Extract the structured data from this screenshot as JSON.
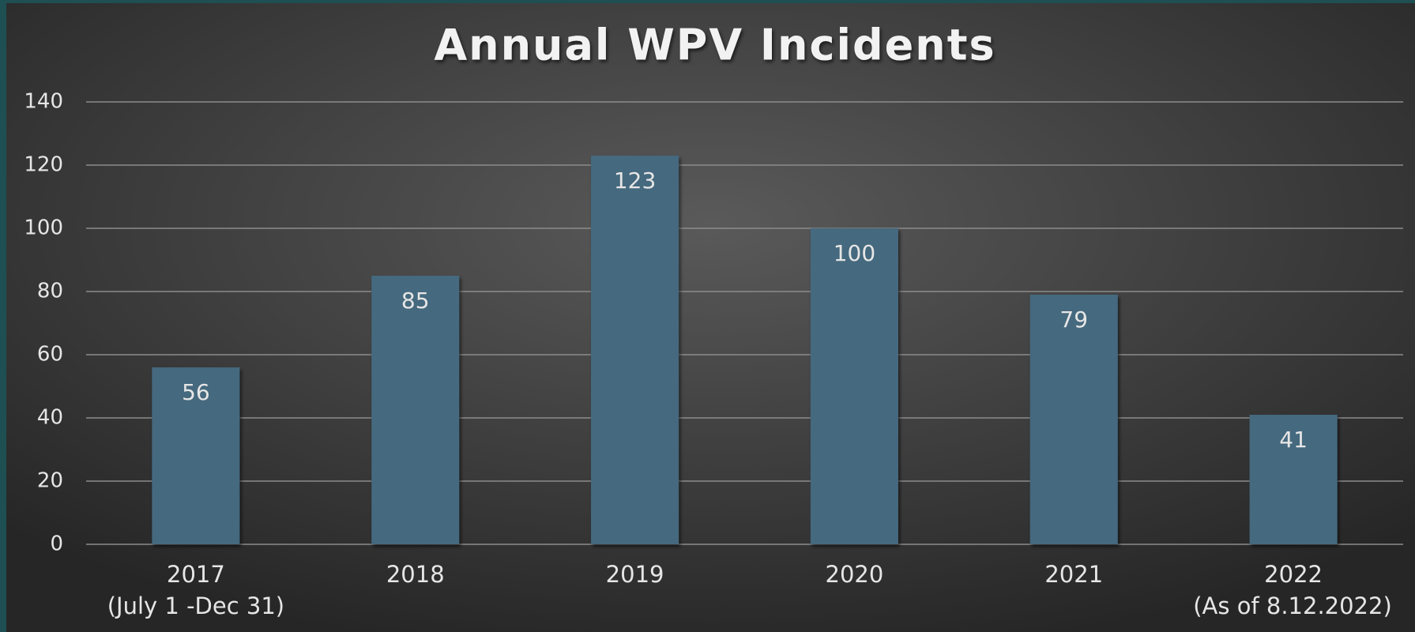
{
  "chart_data": {
    "type": "bar",
    "title": "Annual WPV Incidents",
    "categories": [
      [
        "2017",
        "(July 1 -Dec 31)"
      ],
      [
        "2018"
      ],
      [
        "2019"
      ],
      [
        "2020"
      ],
      [
        "2021"
      ],
      [
        "2022",
        "(As of 8.12.2022)"
      ]
    ],
    "values": [
      56,
      85,
      123,
      100,
      79,
      41
    ],
    "color": "#44697e",
    "ylim": [
      0,
      140
    ],
    "yticks": [
      0,
      20,
      40,
      60,
      80,
      100,
      120,
      140
    ],
    "grid": true
  }
}
